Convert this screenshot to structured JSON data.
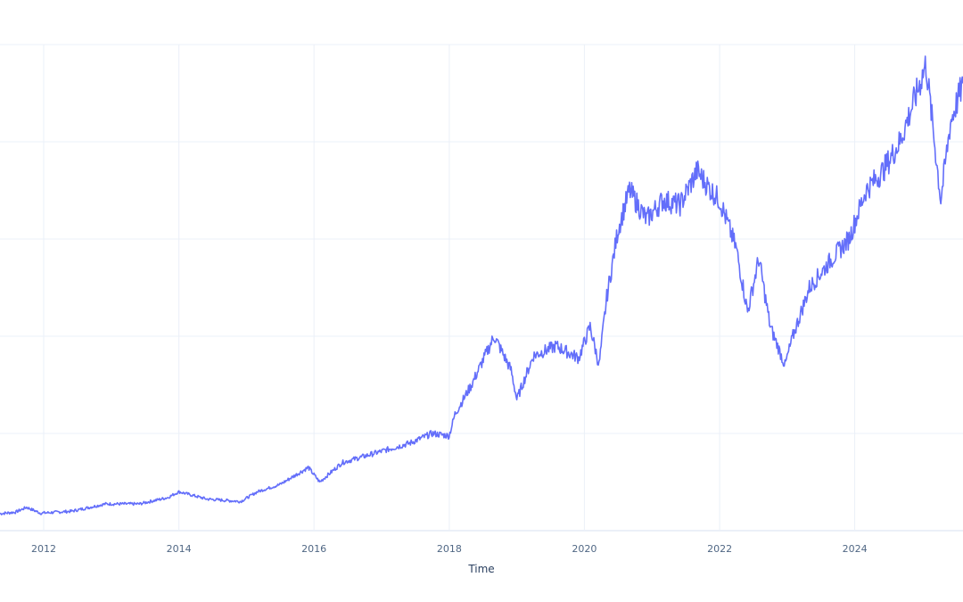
{
  "chart_data": {
    "type": "line",
    "title": "",
    "xlabel": "Time",
    "ylabel": "",
    "x_ticks": [
      "2012",
      "2014",
      "2016",
      "2018",
      "2020",
      "2022",
      "2024"
    ],
    "x_range": [
      "2011-05-10",
      "2025-08-08"
    ],
    "y_range": [
      0,
      100
    ],
    "y_gridlines": [
      20,
      40,
      60,
      80,
      100
    ],
    "grid": true,
    "legend": "none",
    "colors": {
      "line": "#636efa",
      "grid": "#ebf0f8",
      "tick_text": "#506784",
      "axis_title": "#2a3f5f"
    },
    "series": [
      {
        "values": [
          [
            "2011-05-10",
            3.5
          ],
          [
            "2011-08-01",
            3.8
          ],
          [
            "2011-10-01",
            4.8
          ],
          [
            "2011-12-15",
            3.6
          ],
          [
            "2012-06-01",
            4.0
          ],
          [
            "2012-12-01",
            5.5
          ],
          [
            "2013-06-01",
            5.5
          ],
          [
            "2013-11-01",
            6.8
          ],
          [
            "2014-01-01",
            8.0
          ],
          [
            "2014-06-01",
            6.5
          ],
          [
            "2014-12-01",
            6.0
          ],
          [
            "2015-03-01",
            8.0
          ],
          [
            "2015-07-01",
            9.5
          ],
          [
            "2015-12-01",
            13.0
          ],
          [
            "2016-02-01",
            10.0
          ],
          [
            "2016-06-01",
            14.0
          ],
          [
            "2016-12-01",
            16.0
          ],
          [
            "2017-06-01",
            18.0
          ],
          [
            "2017-10-01",
            20.0
          ],
          [
            "2017-12-31",
            19.5
          ],
          [
            "2018-02-01",
            24.0
          ],
          [
            "2018-05-01",
            30.0
          ],
          [
            "2018-09-01",
            40.0
          ],
          [
            "2018-12-01",
            33.0
          ],
          [
            "2019-01-01",
            27.0
          ],
          [
            "2019-04-01",
            36.0
          ],
          [
            "2019-08-01",
            38.0
          ],
          [
            "2019-12-01",
            35.5
          ],
          [
            "2020-02-01",
            42.0
          ],
          [
            "2020-03-20",
            34.0
          ],
          [
            "2020-05-01",
            48.0
          ],
          [
            "2020-07-01",
            62.0
          ],
          [
            "2020-09-01",
            70.0
          ],
          [
            "2020-12-01",
            64.0
          ],
          [
            "2021-03-01",
            68.0
          ],
          [
            "2021-06-01",
            67.0
          ],
          [
            "2021-09-01",
            74.0
          ],
          [
            "2021-11-15",
            70.0
          ],
          [
            "2022-01-01",
            68.0
          ],
          [
            "2022-04-01",
            58.0
          ],
          [
            "2022-06-01",
            45.0
          ],
          [
            "2022-08-01",
            56.0
          ],
          [
            "2022-10-01",
            42.0
          ],
          [
            "2022-12-20",
            34.0
          ],
          [
            "2023-02-01",
            40.0
          ],
          [
            "2023-05-01",
            50.0
          ],
          [
            "2023-09-01",
            56.0
          ],
          [
            "2023-12-01",
            60.0
          ],
          [
            "2024-03-01",
            70.0
          ],
          [
            "2024-06-01",
            74.0
          ],
          [
            "2024-09-01",
            80.0
          ],
          [
            "2024-12-01",
            90.0
          ],
          [
            "2025-01-20",
            96.0
          ],
          [
            "2025-04-10",
            68.0
          ],
          [
            "2025-06-01",
            84.0
          ],
          [
            "2025-08-08",
            92.0
          ]
        ]
      }
    ]
  }
}
